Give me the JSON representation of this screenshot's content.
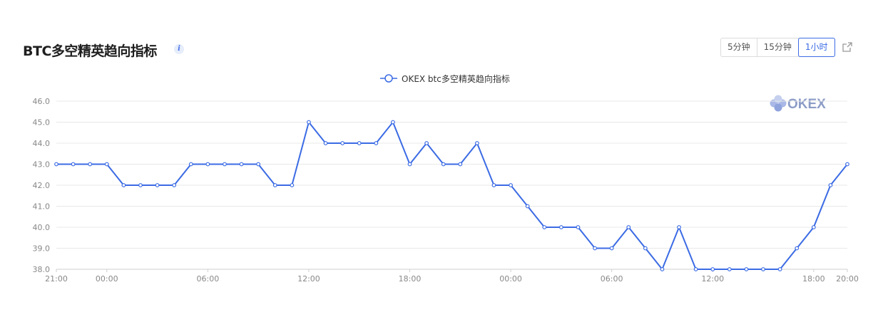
{
  "header": {
    "title": "BTC多空精英趋向指标",
    "info_icon": "info-icon",
    "time_options": [
      "5分钟",
      "15分钟",
      "1小时"
    ],
    "selected_time": "1小时",
    "share_icon": "share-icon"
  },
  "watermark": {
    "text": "OKEX",
    "icon": "okex-logo-icon"
  },
  "colors": {
    "line": "#3b6be4",
    "accent": "#3b6be4",
    "grid": "#e8e8e8"
  },
  "chart_data": {
    "type": "line",
    "title": "",
    "xlabel": "",
    "ylabel": "",
    "ylim": [
      38.0,
      46.0
    ],
    "yticks": [
      "38.0",
      "39.0",
      "40.0",
      "41.0",
      "42.0",
      "43.0",
      "44.0",
      "45.0",
      "46.0"
    ],
    "xtick_labels": [
      "21:00",
      "00:00",
      "06:00",
      "12:00",
      "18:00",
      "00:00",
      "06:00",
      "12:00",
      "18:00",
      "20:00"
    ],
    "xtick_indices": [
      0,
      3,
      9,
      15,
      21,
      27,
      33,
      39,
      45,
      47
    ],
    "legend_position": "top-center",
    "grid": "horizontal",
    "series": [
      {
        "name": "OKEX btc多空精英趋向指标",
        "values": [
          43,
          43,
          43,
          43,
          42,
          42,
          42,
          42,
          43,
          43,
          43,
          43,
          43,
          42,
          42,
          45,
          44,
          44,
          44,
          44,
          45,
          43,
          44,
          43,
          43,
          44,
          42,
          42,
          41,
          40,
          40,
          40,
          39,
          39,
          40,
          39,
          38,
          40,
          38,
          38,
          38,
          38,
          38,
          38,
          39,
          40,
          42,
          43
        ]
      }
    ]
  }
}
